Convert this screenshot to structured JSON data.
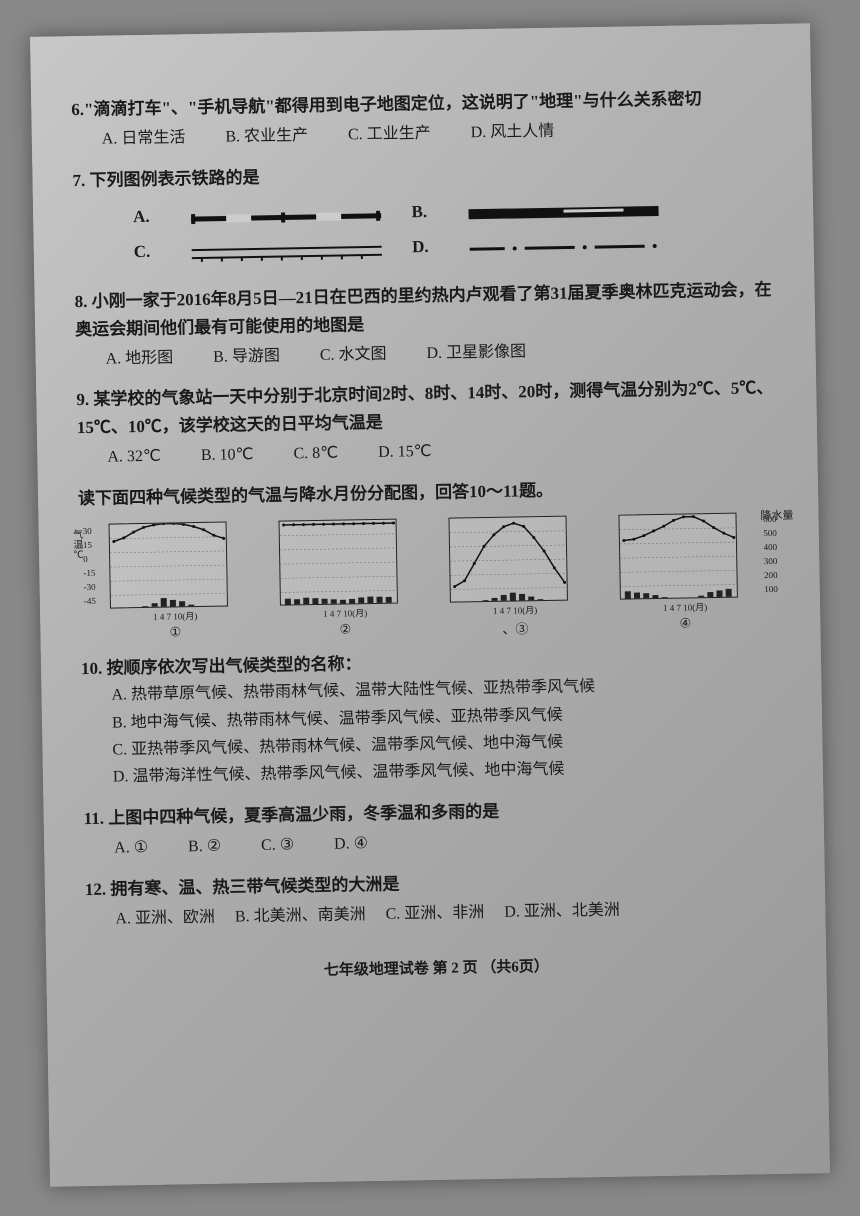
{
  "q6": {
    "text": "6.\"滴滴打车\"、\"手机导航\"都得用到电子地图定位，这说明了\"地理\"与什么关系密切",
    "opts": {
      "a": "A. 日常生活",
      "b": "B. 农业生产",
      "c": "C. 工业生产",
      "d": "D. 风土人情"
    }
  },
  "q7": {
    "text": "7. 下列图例表示铁路的是",
    "labels": {
      "a": "A.",
      "b": "B.",
      "c": "C.",
      "d": "D."
    }
  },
  "q8": {
    "text": "8. 小刚一家于2016年8月5日—21日在巴西的里约热内卢观看了第31届夏季奥林匹克运动会，在奥运会期间他们最有可能使用的地图是",
    "opts": {
      "a": "A. 地形图",
      "b": "B. 导游图",
      "c": "C. 水文图",
      "d": "D. 卫星影像图"
    }
  },
  "q9": {
    "text": "9. 某学校的气象站一天中分别于北京时间2时、8时、14时、20时，测得气温分别为2℃、5℃、15℃、10℃，该学校这天的日平均气温是",
    "opts": {
      "a": "A. 32℃",
      "b": "B. 10℃",
      "c": "C. 8℃",
      "d": "D. 15℃"
    }
  },
  "instruction": "读下面四种气候类型的气温与降水月份分配图，回答10～11题。",
  "charts": {
    "ylabel_left": "气温℃",
    "ylabel_right": "降水量",
    "yaxis_temp": [
      "30",
      "15",
      "0",
      "-15",
      "-30",
      "-45"
    ],
    "yaxis_precip": [
      "600",
      "500",
      "400",
      "300",
      "200",
      "100"
    ],
    "xaxis": "1  4  7  10(月)",
    "nums": {
      "1": "①",
      "2": "②",
      "3": "③",
      "4": "④"
    },
    "chart1": {
      "temp_curve": [
        15,
        18,
        23,
        27,
        29,
        30,
        30,
        29,
        27,
        24,
        19,
        16
      ],
      "precip": [
        5,
        5,
        8,
        20,
        40,
        75,
        60,
        50,
        25,
        10,
        5,
        5
      ],
      "colors": {
        "line": "#111",
        "bar": "#222"
      }
    },
    "chart2": {
      "temp_curve": [
        27,
        27,
        27,
        27,
        27,
        27,
        27,
        27,
        27,
        27,
        27,
        27
      ],
      "precip": [
        55,
        50,
        60,
        55,
        50,
        45,
        40,
        45,
        55,
        60,
        58,
        55
      ],
      "colors": {
        "line": "#111",
        "bar": "#222"
      }
    },
    "chart3": {
      "temp_curve": [
        -30,
        -25,
        -10,
        5,
        15,
        22,
        25,
        22,
        12,
        0,
        -15,
        -28
      ],
      "precip": [
        8,
        8,
        12,
        20,
        35,
        55,
        70,
        60,
        40,
        20,
        12,
        8
      ],
      "colors": {
        "line": "#111",
        "bar": "#222"
      }
    },
    "chart4": {
      "temp_curve": [
        8,
        9,
        12,
        16,
        20,
        25,
        28,
        28,
        24,
        18,
        13,
        9
      ],
      "precip": [
        65,
        55,
        50,
        35,
        20,
        8,
        5,
        8,
        25,
        50,
        60,
        70
      ],
      "colors": {
        "line": "#111",
        "bar": "#222"
      }
    }
  },
  "q10": {
    "text": "10. 按顺序依次写出气候类型的名称：",
    "opts": {
      "a": "A. 热带草原气候、热带雨林气候、温带大陆性气候、亚热带季风气候",
      "b": "B. 地中海气候、热带雨林气候、温带季风气候、亚热带季风气候",
      "c": "C. 亚热带季风气候、热带雨林气候、温带季风气候、地中海气候",
      "d": "D. 温带海洋性气候、热带季风气候、温带季风气候、地中海气候"
    }
  },
  "q11": {
    "text": "11. 上图中四种气候，夏季高温少雨，冬季温和多雨的是",
    "opts": {
      "a": "A. ①",
      "b": "B. ②",
      "c": "C. ③",
      "d": "D. ④"
    }
  },
  "q12": {
    "text": "12. 拥有寒、温、热三带气候类型的大洲是",
    "opts": {
      "a": "A. 亚洲、欧洲",
      "b": "B. 北美洲、南美洲",
      "c": "C. 亚洲、非洲",
      "d": "D. 亚洲、北美洲"
    }
  },
  "footer": "七年级地理试卷  第 2 页 （共6页）"
}
